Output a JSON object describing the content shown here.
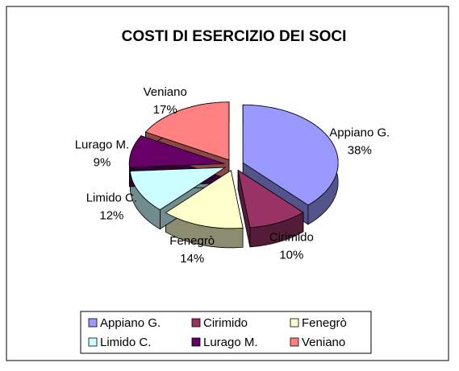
{
  "chart_data": {
    "type": "pie",
    "title": "COSTI DI ESERCIZIO DEI SOCI",
    "categories": [
      "Appiano G.",
      "Cirimido",
      "Fenegrò",
      "Limido C.",
      "Lurago M.",
      "Veniano"
    ],
    "values": [
      38,
      10,
      14,
      12,
      9,
      17
    ],
    "value_labels": [
      "38%",
      "10%",
      "14%",
      "12%",
      "9%",
      "17%"
    ],
    "colors": [
      "#9999ff",
      "#993366",
      "#ffffcc",
      "#ccffff",
      "#660066",
      "#ff8080"
    ],
    "legend": "bottom"
  }
}
